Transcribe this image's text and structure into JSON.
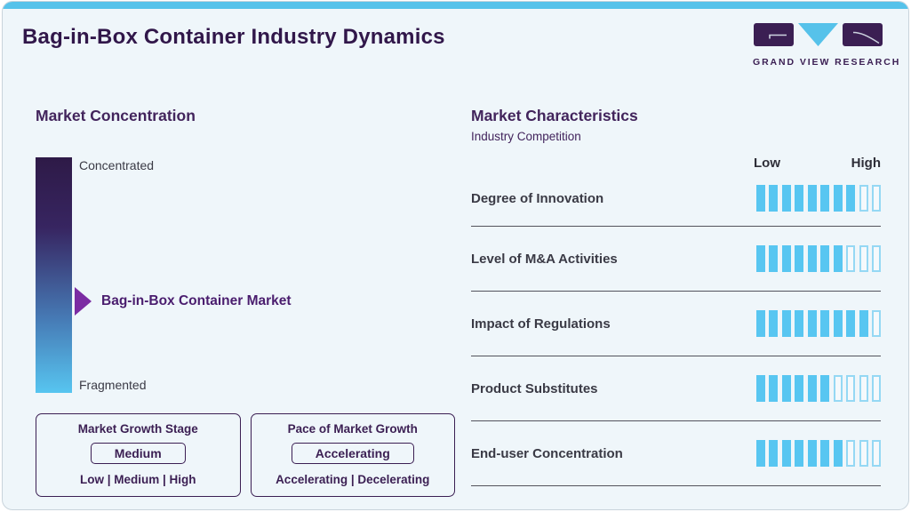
{
  "header": {
    "title": "Bag-in-Box Container Industry Dynamics",
    "logo_text": "GRAND VIEW RESEARCH"
  },
  "concentration": {
    "heading": "Market Concentration",
    "top_label": "Concentrated",
    "bottom_label": "Fragmented",
    "market_label": "Bag-in-Box Container Market",
    "boxes": [
      {
        "title": "Market Growth Stage",
        "value": "Medium",
        "options": "Low | Medium | High"
      },
      {
        "title": "Pace of Market Growth",
        "value": "Accelerating",
        "options": "Accelerating | Decelerating"
      }
    ]
  },
  "characteristics": {
    "heading": "Market Characteristics",
    "subtitle": "Industry Competition",
    "scale": {
      "low": "Low",
      "high": "High"
    }
  },
  "chart_data": {
    "type": "bar",
    "title": "Industry Competition",
    "categories": [
      "Degree of Innovation",
      "Level of M&A Activities",
      "Impact of Regulations",
      "Product Substitutes",
      "End-user Concentration"
    ],
    "values": [
      8,
      7,
      9,
      6,
      7
    ],
    "scale_max": 10,
    "scale_labels": [
      "Low",
      "High"
    ],
    "legend_position": "none",
    "grid": false
  },
  "colors": {
    "accent_blue": "#56c2ea",
    "brand_purple": "#3b1f53",
    "heading_purple": "#42245c",
    "arrow_purple": "#7b2ca3",
    "bar_fill_blue": "#58c6f1",
    "bar_empty_border": "#95d8f4",
    "gradient_top": "#2e1a47",
    "gradient_bottom": "#57c5f0",
    "card_background": "#eff6fa",
    "text_charcoal": "#3a3a45"
  }
}
